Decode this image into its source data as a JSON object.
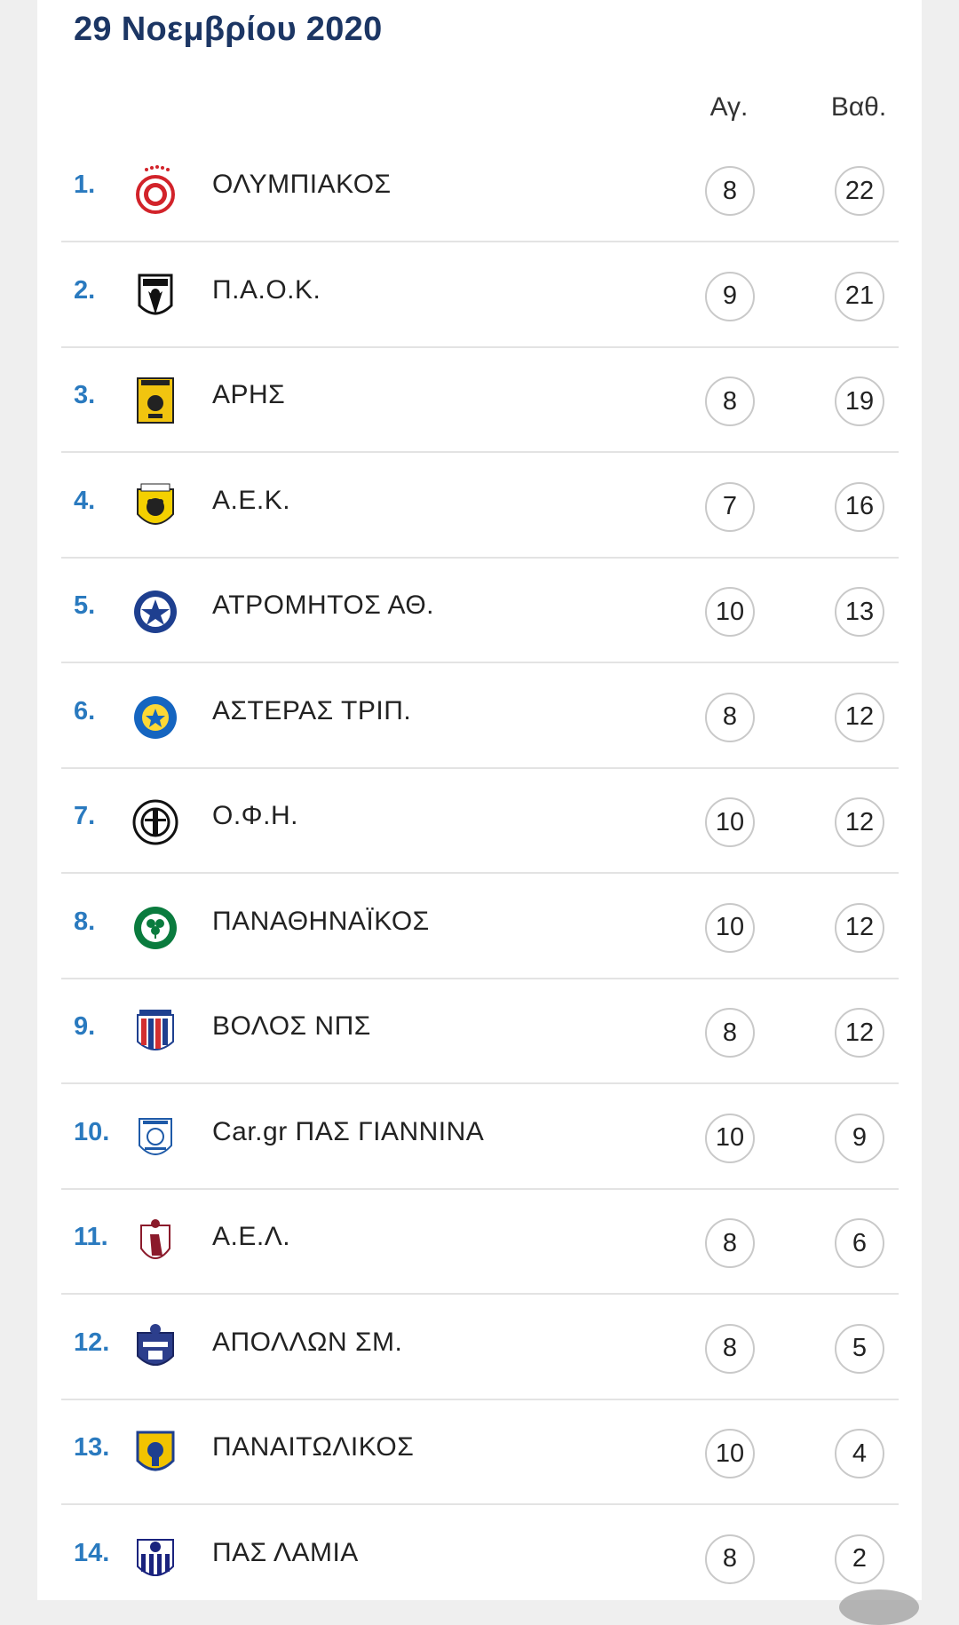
{
  "title": "29 Νοεμβρίου 2020",
  "columns": {
    "played": "Αγ.",
    "points": "Βαθ."
  },
  "rows": [
    {
      "rank": "1.",
      "team": "ΟΛΥΜΠΙΑΚΟΣ",
      "played": "8",
      "points": "22",
      "logo": "olympiakos-logo-icon"
    },
    {
      "rank": "2.",
      "team": "Π.Α.Ο.Κ.",
      "played": "9",
      "points": "21",
      "logo": "paok-logo-icon"
    },
    {
      "rank": "3.",
      "team": "ΑΡΗΣ",
      "played": "8",
      "points": "19",
      "logo": "aris-logo-icon"
    },
    {
      "rank": "4.",
      "team": "Α.Ε.Κ.",
      "played": "7",
      "points": "16",
      "logo": "aek-logo-icon"
    },
    {
      "rank": "5.",
      "team": "ΑΤΡΟΜΗΤΟΣ ΑΘ.",
      "played": "10",
      "points": "13",
      "logo": "atromitos-logo-icon"
    },
    {
      "rank": "6.",
      "team": "ΑΣΤΕΡΑΣ ΤΡΙΠ.",
      "played": "8",
      "points": "12",
      "logo": "asteras-logo-icon"
    },
    {
      "rank": "7.",
      "team": "Ο.Φ.Η.",
      "played": "10",
      "points": "12",
      "logo": "ofi-logo-icon"
    },
    {
      "rank": "8.",
      "team": "ΠΑΝΑΘΗΝΑΪΚΟΣ",
      "played": "10",
      "points": "12",
      "logo": "panathinaikos-logo-icon"
    },
    {
      "rank": "9.",
      "team": "ΒΟΛΟΣ ΝΠΣ",
      "played": "8",
      "points": "12",
      "logo": "volos-logo-icon"
    },
    {
      "rank": "10.",
      "team": "Car.gr ΠΑΣ ΓΙΑΝΝΙΝΑ",
      "played": "10",
      "points": "9",
      "logo": "pas-giannina-logo-icon"
    },
    {
      "rank": "11.",
      "team": "Α.Ε.Λ.",
      "played": "8",
      "points": "6",
      "logo": "ael-logo-icon"
    },
    {
      "rank": "12.",
      "team": "ΑΠΟΛΛΩΝ ΣΜ.",
      "played": "8",
      "points": "5",
      "logo": "apollon-logo-icon"
    },
    {
      "rank": "13.",
      "team": "ΠΑΝΑΙΤΩΛΙΚΟΣ",
      "played": "10",
      "points": "4",
      "logo": "panaitolikos-logo-icon"
    },
    {
      "rank": "14.",
      "team": "ΠΑΣ ΛΑΜΙΑ",
      "played": "8",
      "points": "2",
      "logo": "lamia-logo-icon"
    }
  ]
}
